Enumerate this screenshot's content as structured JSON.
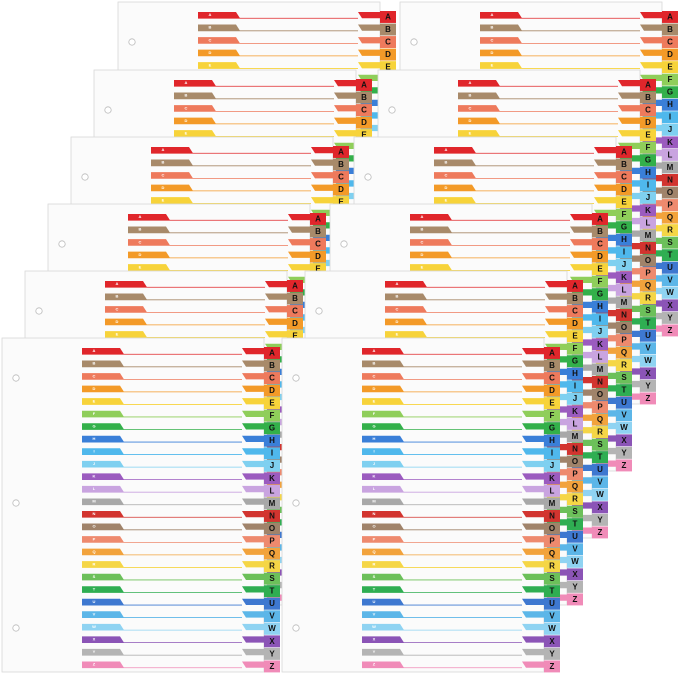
{
  "tabs": [
    "A",
    "B",
    "C",
    "D",
    "E",
    "F",
    "G",
    "H",
    "I",
    "J",
    "K",
    "L",
    "M",
    "N",
    "O",
    "P",
    "Q",
    "R",
    "S",
    "T",
    "U",
    "V",
    "W",
    "X",
    "Y",
    "Z"
  ]
}
